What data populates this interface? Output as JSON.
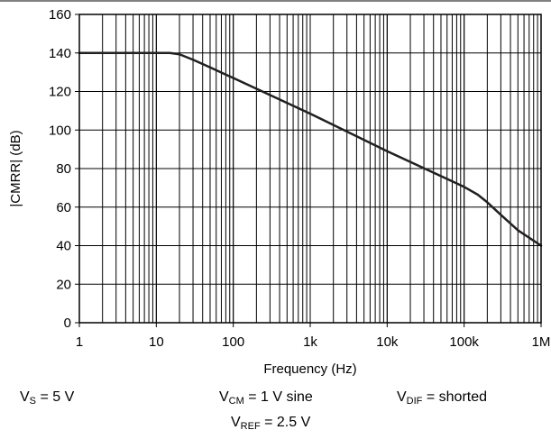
{
  "chart_data": {
    "type": "line",
    "title": "",
    "xlabel": "Frequency (Hz)",
    "ylabel": "|CMRR| (dB)",
    "x_scale": "log",
    "xlim": [
      1,
      1000000
    ],
    "ylim": [
      0,
      160
    ],
    "x_ticks": [
      1,
      10,
      100,
      1000,
      10000,
      100000,
      1000000
    ],
    "x_tick_labels": [
      "1",
      "10",
      "100",
      "1k",
      "10k",
      "100k",
      "1M"
    ],
    "y_ticks": [
      0,
      20,
      40,
      60,
      80,
      100,
      120,
      140,
      160
    ],
    "y_tick_labels": [
      "0",
      "20",
      "40",
      "60",
      "80",
      "100",
      "120",
      "140",
      "160"
    ],
    "grid": true,
    "series": [
      {
        "color": "#231f20",
        "x": [
          1,
          10,
          15,
          20,
          30,
          50,
          100,
          1000,
          10000,
          100000,
          150000,
          200000,
          300000,
          500000,
          1000000
        ],
        "y": [
          140,
          140,
          140,
          139.3,
          136.5,
          132.5,
          127,
          108.5,
          89,
          70.5,
          66.5,
          62.5,
          56,
          48,
          40
        ]
      }
    ]
  },
  "conditions": {
    "vs": {
      "main": "V",
      "sub": "S",
      "rest": " = 5 V"
    },
    "vcm": {
      "main": "V",
      "sub": "CM",
      "rest": " = 1 V sine"
    },
    "vdif": {
      "main": "V",
      "sub": "DIF",
      "rest": " = shorted"
    },
    "vref": {
      "main": "V",
      "sub": "REF",
      "rest": " = 2.5 V"
    }
  }
}
